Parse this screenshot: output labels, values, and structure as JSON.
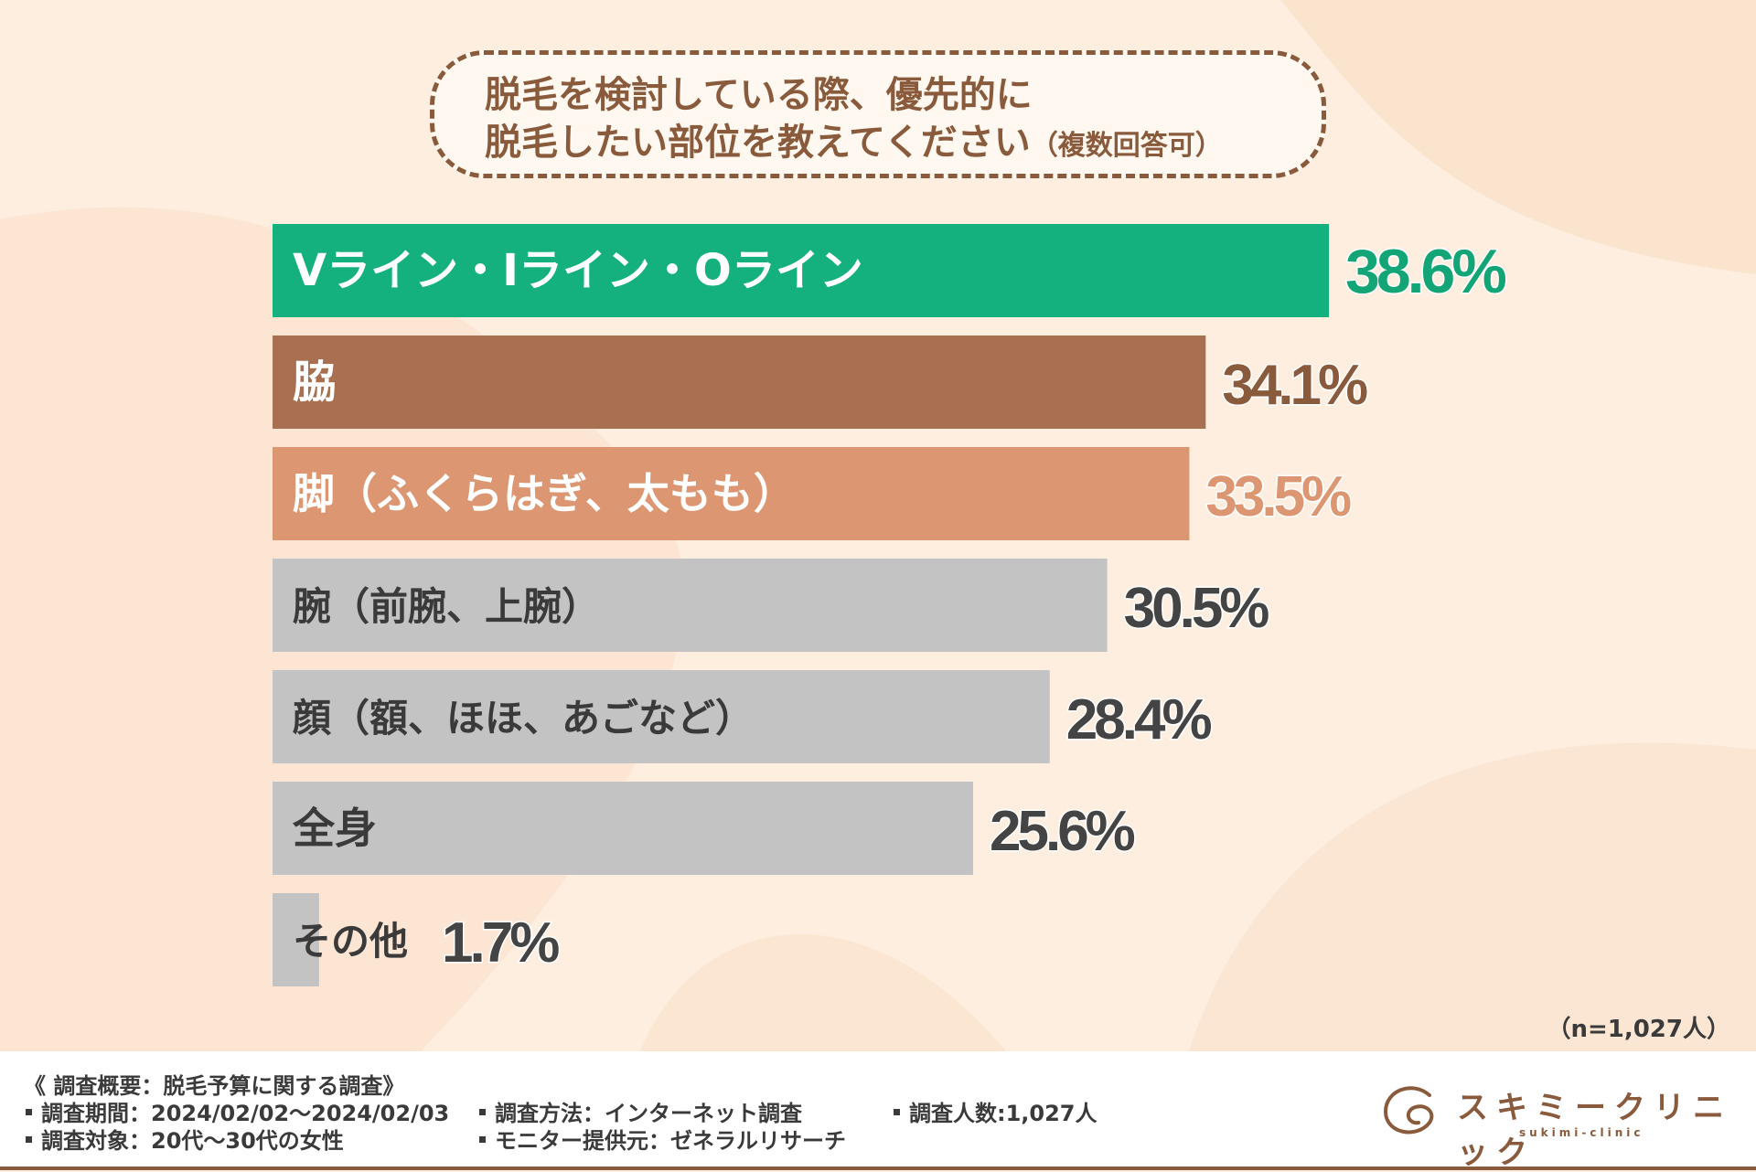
{
  "title": {
    "line1": "脱毛を検討している際、優先的に",
    "line2": "脱毛したい部位を教えてください",
    "note": "（複数回答可）"
  },
  "chart_data": {
    "type": "bar",
    "orientation": "horizontal",
    "categories": [
      "Vライン・Iライン・Oライン",
      "脇",
      "脚（ふくらはぎ、太もも）",
      "腕（前腕、上腕）",
      "顔（額、ほほ、あごなど）",
      "全身",
      "その他"
    ],
    "values": [
      38.6,
      34.1,
      33.5,
      30.5,
      28.4,
      25.6,
      1.7
    ],
    "value_labels": [
      "38.6%",
      "34.1%",
      "33.5%",
      "30.5%",
      "28.4%",
      "25.6%",
      "1.7%"
    ],
    "xlim": [
      0,
      38.6
    ],
    "colors": [
      "#14b07e",
      "#a87050",
      "#dc9672",
      "#c3c3c3",
      "#c3c3c3",
      "#c3c3c3",
      "#c3c3c3"
    ],
    "value_colors": [
      "#14a577",
      "#8a5a3c",
      "#dc9672",
      "#444444",
      "#444444",
      "#444444",
      "#444444"
    ]
  },
  "sample_size": "（n=1,027人）",
  "footer": {
    "summary": "《 調査概要：脱毛予算に関する調査》",
    "period": "調査期間：2024/02/02〜2024/02/03",
    "target": "調査対象：20代〜30代の女性",
    "method": "調査方法：インターネット調査",
    "provider": "モニター提供元：ゼネラルリサーチ",
    "count": "調査人数:1,027人"
  },
  "logo": {
    "name": "スキミークリニック",
    "sub": "sukimi-clinic"
  }
}
